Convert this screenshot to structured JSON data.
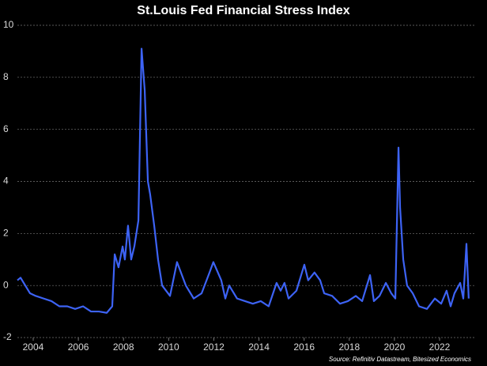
{
  "chart_data": {
    "type": "line",
    "title": "St.Louis Fed Financial Stress Index",
    "annotation": "Source: Refinitiv Datastream, Bitesized Economics",
    "xlim": [
      2003.3,
      2023.54
    ],
    "xticks": [
      2004,
      2006,
      2008,
      2010,
      2012,
      2014,
      2016,
      2018,
      2020,
      2022
    ],
    "ylim": [
      -2,
      10
    ],
    "yticks": [
      -2,
      0,
      2,
      4,
      6,
      8,
      10
    ],
    "grid": true,
    "series": [
      {
        "name": "St.Louis Fed Financial Stress Index",
        "color": "#3d63f5",
        "x": [
          2003.3,
          2003.44,
          2003.65,
          2003.86,
          2004.11,
          2004.46,
          2004.81,
          2005.16,
          2005.51,
          2005.86,
          2006.21,
          2006.56,
          2006.91,
          2007.26,
          2007.5,
          2007.61,
          2007.78,
          2007.96,
          2008.06,
          2008.2,
          2008.34,
          2008.48,
          2008.66,
          2008.8,
          2008.94,
          2009.08,
          2009.18,
          2009.36,
          2009.53,
          2009.71,
          2010.06,
          2010.37,
          2010.76,
          2011.11,
          2011.46,
          2011.81,
          2011.98,
          2012.33,
          2012.51,
          2012.68,
          2013.03,
          2013.38,
          2013.73,
          2014.08,
          2014.43,
          2014.78,
          2014.96,
          2015.13,
          2015.31,
          2015.66,
          2016.01,
          2016.18,
          2016.46,
          2016.71,
          2016.89,
          2017.24,
          2017.59,
          2017.94,
          2018.29,
          2018.57,
          2018.92,
          2019.09,
          2019.34,
          2019.62,
          2019.86,
          2020.04,
          2020.18,
          2020.25,
          2020.39,
          2020.56,
          2020.81,
          2021.09,
          2021.44,
          2021.79,
          2022.07,
          2022.31,
          2022.49,
          2022.66,
          2022.91,
          2023.05,
          2023.19,
          2023.29
        ],
        "values": [
          0.2,
          0.3,
          0.0,
          -0.3,
          -0.4,
          -0.5,
          -0.6,
          -0.8,
          -0.8,
          -0.9,
          -0.8,
          -1.0,
          -1.0,
          -1.05,
          -0.8,
          1.2,
          0.7,
          1.5,
          1.0,
          2.3,
          1.0,
          1.5,
          2.5,
          9.1,
          7.5,
          4.0,
          3.5,
          2.3,
          1.0,
          0.0,
          -0.4,
          0.9,
          0.0,
          -0.5,
          -0.3,
          0.5,
          0.9,
          0.2,
          -0.5,
          0.0,
          -0.5,
          -0.6,
          -0.7,
          -0.6,
          -0.8,
          0.1,
          -0.2,
          0.1,
          -0.5,
          -0.2,
          0.8,
          0.2,
          0.5,
          0.2,
          -0.3,
          -0.4,
          -0.7,
          -0.6,
          -0.4,
          -0.6,
          0.4,
          -0.6,
          -0.4,
          0.1,
          -0.3,
          -0.5,
          5.3,
          3.0,
          1.0,
          0.0,
          -0.3,
          -0.8,
          -0.9,
          -0.5,
          -0.7,
          -0.2,
          -0.8,
          -0.3,
          0.1,
          -0.5,
          1.6,
          -0.5
        ]
      }
    ]
  }
}
